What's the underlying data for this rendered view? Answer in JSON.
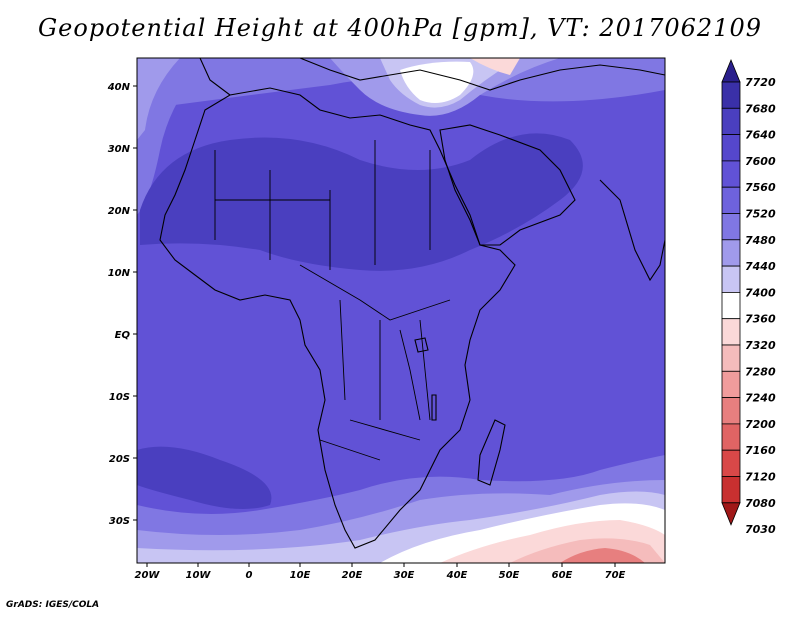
{
  "title": "Geopotential Height at 400hPa [gpm], VT: 2017062109",
  "credit": "GrADS: IGES/COLA",
  "lat_labels": [
    "40N",
    "30N",
    "20N",
    "10N",
    "EQ",
    "10S",
    "20S",
    "30S"
  ],
  "lon_labels": [
    "20W",
    "10W",
    "0",
    "10E",
    "20E",
    "30E",
    "40E",
    "50E",
    "60E",
    "70E"
  ],
  "colorbar": {
    "levels": [
      "7720",
      "7680",
      "7640",
      "7600",
      "7560",
      "7520",
      "7480",
      "7440",
      "7400",
      "7360",
      "7320",
      "7280",
      "7240",
      "7200",
      "7160",
      "7120",
      "7080",
      "7030"
    ],
    "colors": [
      "#2a1f8c",
      "#3a30a8",
      "#4a3fbf",
      "#5547cc",
      "#6152d6",
      "#6e62dd",
      "#8077e3",
      "#a09aeb",
      "#c8c5f3",
      "#ffffff",
      "#fbd9d9",
      "#f5bcbc",
      "#f09c9c",
      "#e77f7f",
      "#e06464",
      "#d94848",
      "#c83030",
      "#a01818"
    ]
  },
  "colors": {
    "deep": "#4a3fbf",
    "mid": "#6152d6",
    "light": "#8077e3",
    "pale": "#c8c5f3",
    "white": "#ffffff",
    "pink": "#f5bcbc",
    "red": "#e06464"
  }
}
